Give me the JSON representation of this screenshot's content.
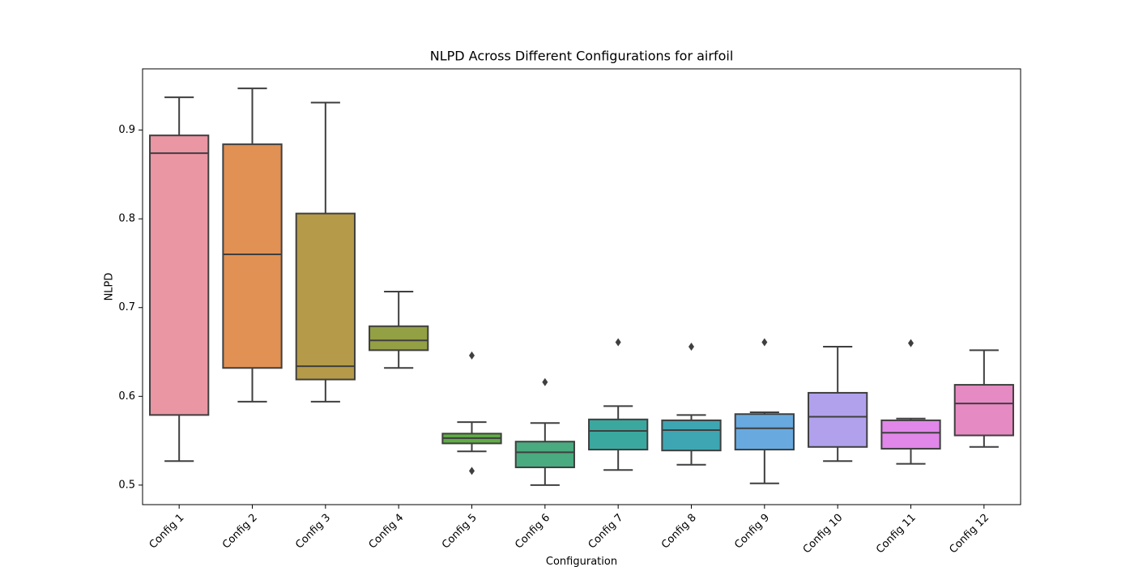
{
  "chart_data": {
    "type": "box",
    "title": "NLPD Across Different Configurations for airfoil",
    "xlabel": "Configuration",
    "ylabel": "NLPD",
    "categories": [
      "Config 1",
      "Config 2",
      "Config 3",
      "Config 4",
      "Config 5",
      "Config 6",
      "Config 7",
      "Config 8",
      "Config 9",
      "Config 10",
      "Config 11",
      "Config 12"
    ],
    "colors": [
      "#ea96a3",
      "#e19153",
      "#b59b49",
      "#94a044",
      "#5fae45",
      "#49ab7f",
      "#3ba8a0",
      "#3ea6b3",
      "#68aadf",
      "#b1a1ed",
      "#e087e9",
      "#e68ac3"
    ],
    "boxes": [
      {
        "low": 0.527,
        "q1": 0.579,
        "median": 0.874,
        "q3": 0.894,
        "high": 0.937,
        "outliers": []
      },
      {
        "low": 0.594,
        "q1": 0.632,
        "median": 0.76,
        "q3": 0.884,
        "high": 0.947,
        "outliers": []
      },
      {
        "low": 0.594,
        "q1": 0.619,
        "median": 0.634,
        "q3": 0.806,
        "high": 0.931,
        "outliers": []
      },
      {
        "low": 0.632,
        "q1": 0.652,
        "median": 0.663,
        "q3": 0.679,
        "high": 0.718,
        "outliers": []
      },
      {
        "low": 0.538,
        "q1": 0.547,
        "median": 0.553,
        "q3": 0.558,
        "high": 0.571,
        "outliers": [
          0.646,
          0.516
        ]
      },
      {
        "low": 0.5,
        "q1": 0.52,
        "median": 0.537,
        "q3": 0.549,
        "high": 0.57,
        "outliers": [
          0.616
        ]
      },
      {
        "low": 0.517,
        "q1": 0.54,
        "median": 0.561,
        "q3": 0.574,
        "high": 0.589,
        "outliers": [
          0.661
        ]
      },
      {
        "low": 0.523,
        "q1": 0.539,
        "median": 0.562,
        "q3": 0.573,
        "high": 0.579,
        "outliers": [
          0.656
        ]
      },
      {
        "low": 0.502,
        "q1": 0.54,
        "median": 0.564,
        "q3": 0.58,
        "high": 0.582,
        "outliers": [
          0.661
        ]
      },
      {
        "low": 0.527,
        "q1": 0.543,
        "median": 0.577,
        "q3": 0.604,
        "high": 0.656,
        "outliers": []
      },
      {
        "low": 0.524,
        "q1": 0.541,
        "median": 0.559,
        "q3": 0.573,
        "high": 0.575,
        "outliers": [
          0.66
        ]
      },
      {
        "low": 0.543,
        "q1": 0.556,
        "median": 0.592,
        "q3": 0.613,
        "high": 0.652,
        "outliers": []
      }
    ],
    "ylim": [
      0.478,
      0.969
    ],
    "yticks": [
      0.5,
      0.6,
      0.7,
      0.8,
      0.9
    ]
  }
}
